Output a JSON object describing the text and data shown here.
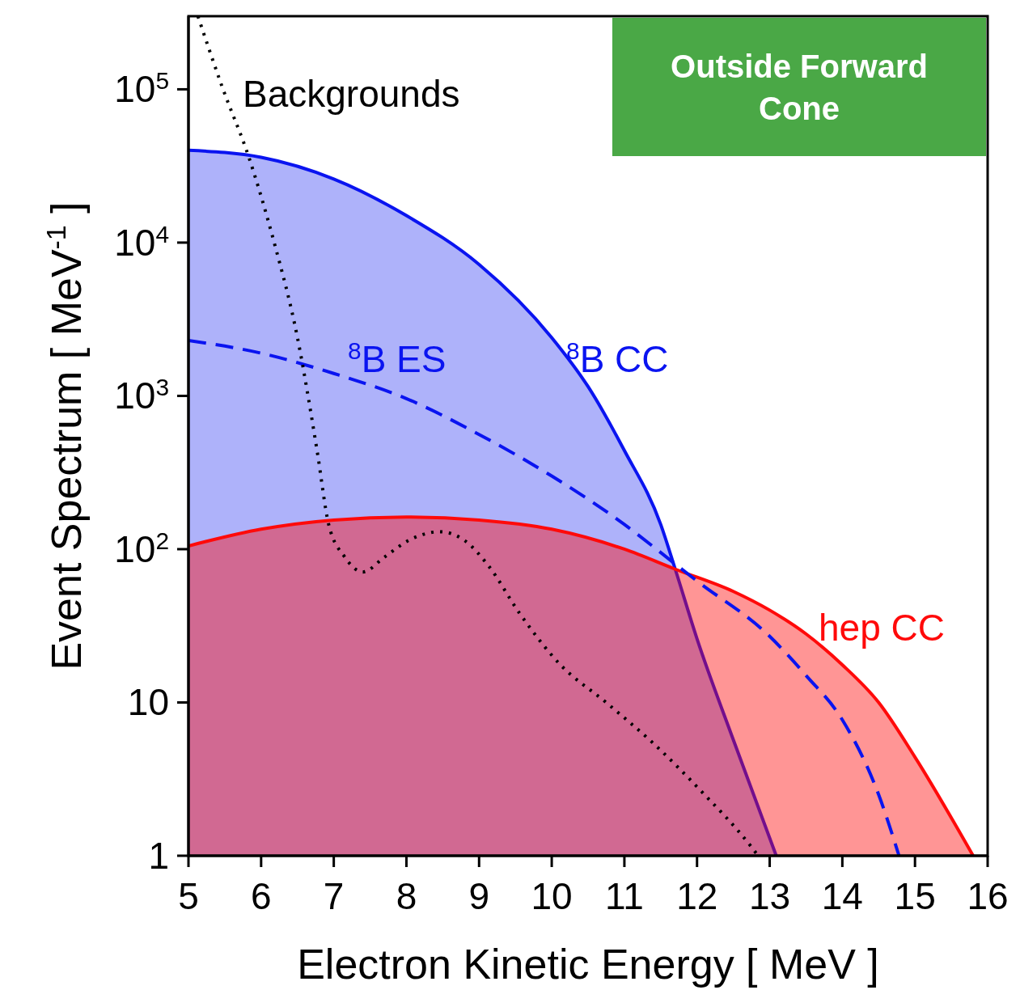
{
  "chart_data": {
    "type": "line",
    "xlabel": "Electron Kinetic Energy [ MeV ]",
    "ylabel": "Event Spectrum [ MeV$^{-1}$ ]",
    "log": "y",
    "xlim": [
      5,
      16
    ],
    "xticks": [
      5,
      6,
      7,
      8,
      9,
      10,
      11,
      12,
      13,
      14,
      15,
      16
    ],
    "ylim": [
      1,
      300000
    ],
    "yticks": [
      1,
      10,
      {
        "value": 100,
        "label": "10$^{2}$"
      },
      {
        "value": 1000,
        "label": "10$^{3}$"
      },
      {
        "value": 10000,
        "label": "10$^{4}$"
      },
      {
        "value": 100000,
        "label": "10$^{5}$"
      }
    ],
    "annotations": [
      "Outside Forward Cone"
    ],
    "series": [
      {
        "name": "$^{8}$B CC",
        "type": "area",
        "color": "#0a14f0",
        "line_style": "solid",
        "x": [
          5,
          6,
          7,
          8,
          9,
          10,
          10.5,
          11,
          11.5,
          11.7,
          12,
          12.5,
          13.09
        ],
        "values": [
          40000,
          36000,
          26000,
          15000,
          7200,
          2400,
          1150,
          440,
          145,
          74,
          26,
          5.7,
          1
        ]
      },
      {
        "name": "$^{8}$B ES",
        "color": "#0a14f0",
        "line_style": "dashed",
        "x": [
          5,
          6,
          7,
          8,
          9,
          10,
          11,
          11.7,
          12,
          13,
          13.5,
          14,
          14.5,
          14.78
        ],
        "values": [
          2300,
          1900,
          1400,
          960,
          560,
          300,
          145,
          80,
          62,
          27,
          15,
          7.7,
          2.5,
          1
        ]
      },
      {
        "name": "Backgrounds",
        "color": "#000000",
        "line_style": "dotted",
        "x": [
          5.13,
          5.46,
          5.84,
          6.17,
          6.5,
          6.77,
          6.93,
          7.15,
          7.4,
          7.7,
          8.03,
          8.46,
          8.8,
          9.12,
          9.56,
          10.1,
          10.76,
          11.4,
          12.07,
          12.73,
          12.84
        ],
        "values": [
          300000,
          105000,
          35000,
          10400,
          2400,
          440,
          145,
          89,
          71,
          89,
          114,
          130,
          114,
          79,
          38,
          18,
          9.9,
          5.4,
          2.6,
          1.17,
          1
        ]
      },
      {
        "name": "hep CC",
        "type": "area",
        "color": "#ff0a0a",
        "line_style": "solid",
        "x": [
          5,
          6,
          7,
          8,
          9,
          10,
          11,
          11.7,
          12.5,
          13,
          13.5,
          14,
          14.5,
          15,
          15.8
        ],
        "values": [
          105,
          135,
          155,
          162,
          155,
          135,
          100,
          74,
          53,
          40,
          28,
          17.6,
          10,
          4.4,
          1
        ]
      }
    ]
  }
}
